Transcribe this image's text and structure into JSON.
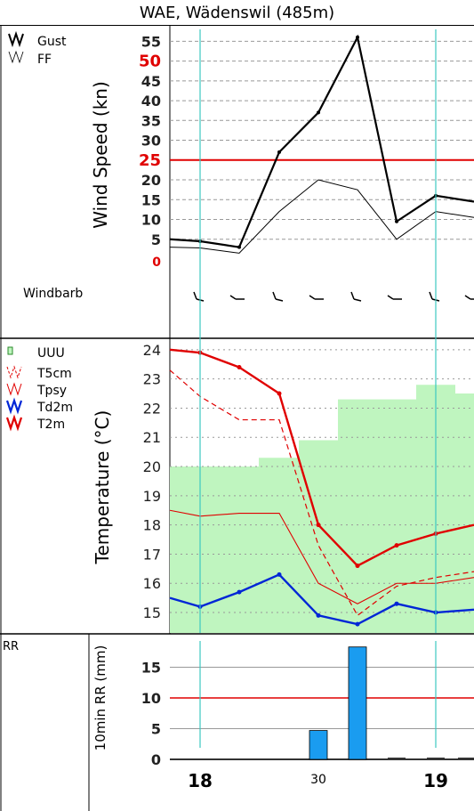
{
  "title": "WAE, Wädenswil (485m)",
  "colors": {
    "gust": "#000000",
    "ff": "#000000",
    "threshold": "#e00000",
    "marker": "#3cc8c0",
    "humidity_fill": "#bff5bf",
    "t2m": "#e00000",
    "td2m": "#0026d6",
    "rr_bar": "#1a9cf0"
  },
  "x_axis": {
    "tick_labels": [
      "18",
      "30",
      "19"
    ]
  },
  "chart_data": [
    {
      "type": "line",
      "panel": "wind",
      "ylabel": "Wind Speed (kn)",
      "ylim": [
        0,
        58
      ],
      "yticks": [
        5,
        10,
        15,
        20,
        25,
        30,
        35,
        40,
        45,
        50,
        55
      ],
      "highlight_ticks": [
        25,
        50
      ],
      "threshold": 25,
      "grid": true,
      "legend": [
        "Gust",
        "FF"
      ],
      "series": [
        {
          "name": "Gust",
          "values": [
            5,
            4.5,
            3,
            27,
            37,
            56,
            9.5,
            16,
            14.5
          ]
        },
        {
          "name": "FF",
          "values": [
            3,
            2.8,
            1.5,
            12,
            20,
            17.5,
            5,
            12,
            10.5
          ]
        }
      ],
      "windbarb_label": "Windbarb"
    },
    {
      "type": "line",
      "panel": "temperature",
      "ylabel": "Temperature (°C)",
      "ylim": [
        14.3,
        24.3
      ],
      "yticks": [
        15,
        16,
        17,
        18,
        19,
        20,
        21,
        22,
        23,
        24
      ],
      "grid": true,
      "legend": [
        "UUU",
        "T5cm",
        "Tpsy",
        "Td2m",
        "T2m"
      ],
      "humidity_steps": [
        20,
        20,
        20.3,
        20.9,
        22.3,
        22.3,
        22.8,
        22.8,
        22.5,
        22.4
      ],
      "series": [
        {
          "name": "T2m",
          "values": [
            24,
            23.9,
            23.4,
            22.5,
            18,
            16.6,
            17.3,
            17.7,
            18
          ]
        },
        {
          "name": "T5cm",
          "values": [
            23.3,
            22.4,
            21.6,
            21.6,
            17.3,
            14.9,
            15.9,
            16.2,
            16.4
          ]
        },
        {
          "name": "Tpsy",
          "values": [
            18.5,
            18.3,
            18.4,
            18.4,
            16,
            15.3,
            16,
            16,
            16.2
          ]
        },
        {
          "name": "Td2m",
          "values": [
            15.5,
            15.2,
            15.7,
            16.3,
            14.9,
            14.6,
            15.3,
            15,
            15.1
          ]
        }
      ]
    },
    {
      "type": "bar",
      "panel": "precipitation",
      "ylabel": "10min RR (mm)",
      "ylim": [
        0,
        20
      ],
      "yticks": [
        0,
        5,
        10,
        15
      ],
      "threshold": 10,
      "grid": true,
      "legend": [
        "RR"
      ],
      "values": [
        0,
        0,
        0,
        0,
        4.7,
        18.3,
        0.2,
        0.2,
        0.2
      ]
    }
  ]
}
